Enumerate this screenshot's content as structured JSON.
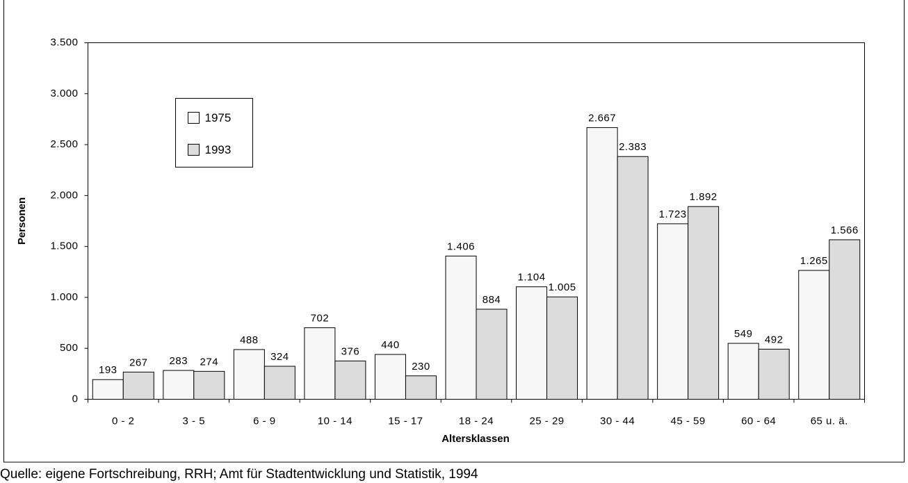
{
  "chart_data": {
    "type": "bar",
    "x_label": "Altersklassen",
    "y_label": "Personen",
    "source": "Quelle: eigene Fortschreibung, RRH; Amt für Stadtentwicklung und Statistik, 1994",
    "categories": [
      "0 - 2",
      "3 - 5",
      "6 - 9",
      "10 - 14",
      "15 - 17",
      "18 - 24",
      "25 - 29",
      "30 - 44",
      "45 - 59",
      "60 - 64",
      "65 u. ä."
    ],
    "series": [
      {
        "name": "1975",
        "color": "#f7f7f7",
        "values": [
          193,
          283,
          488,
          702,
          440,
          1406,
          1104,
          2667,
          1723,
          549,
          1265
        ],
        "value_labels": [
          "193",
          "283",
          "488",
          "702",
          "440",
          "1.406",
          "1.104",
          "2.667",
          "1.723",
          "549",
          "1.265"
        ]
      },
      {
        "name": "1993",
        "color": "#dcdcdc",
        "values": [
          267,
          274,
          324,
          376,
          230,
          884,
          1005,
          2383,
          1892,
          492,
          1566
        ],
        "value_labels": [
          "267",
          "274",
          "324",
          "376",
          "230",
          "884",
          "1.005",
          "2.383",
          "1.892",
          "492",
          "1.566"
        ]
      }
    ],
    "ylim": [
      0,
      3500
    ],
    "yticks": [
      0,
      500,
      {
        "value": 1000,
        "label": "1.000"
      },
      {
        "value": 1500,
        "label": "1.500"
      },
      {
        "value": 2000,
        "label": "2.000"
      },
      {
        "value": 2500,
        "label": "2.500"
      },
      {
        "value": 3000,
        "label": "3.000"
      },
      {
        "value": 3500,
        "label": "3.500"
      }
    ],
    "legend": "upper left"
  }
}
